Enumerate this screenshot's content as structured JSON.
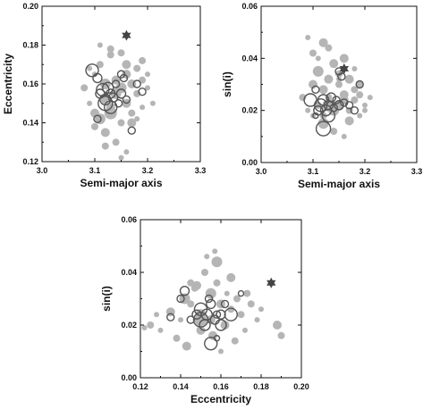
{
  "chart_data": [
    {
      "type": "scatter",
      "xlabel": "Semi-major axis",
      "ylabel": "Eccentricity",
      "xlim": [
        3.0,
        3.3
      ],
      "ylim": [
        0.12,
        0.2
      ],
      "xticks": [
        "3.0",
        "3.1",
        "3.2",
        "3.3"
      ],
      "yticks": [
        "0.12",
        "0.14",
        "0.16",
        "0.18",
        "0.20"
      ],
      "series": [
        {
          "marker": "filled-gray-circle",
          "x": [
            3.08,
            3.09,
            3.1,
            3.1,
            3.11,
            3.11,
            3.12,
            3.12,
            3.13,
            3.13,
            3.14,
            3.14,
            3.15,
            3.15,
            3.16,
            3.16,
            3.17,
            3.17,
            3.18,
            3.18,
            3.19,
            3.19,
            3.2,
            3.21,
            3.1,
            3.12,
            3.14,
            3.16,
            3.18,
            3.11,
            3.13,
            3.15,
            3.17,
            3.19,
            3.09,
            3.15,
            3.13,
            3.16,
            3.2,
            3.12
          ],
          "y": [
            0.158,
            0.15,
            0.145,
            0.165,
            0.142,
            0.17,
            0.152,
            0.16,
            0.148,
            0.175,
            0.155,
            0.162,
            0.14,
            0.158,
            0.165,
            0.15,
            0.145,
            0.16,
            0.155,
            0.168,
            0.148,
            0.172,
            0.158,
            0.15,
            0.138,
            0.135,
            0.13,
            0.125,
            0.142,
            0.18,
            0.178,
            0.176,
            0.14,
            0.162,
            0.168,
            0.122,
            0.145,
            0.17,
            0.165,
            0.128
          ],
          "size": [
            4,
            3,
            5,
            3,
            6,
            4,
            5,
            6,
            5,
            4,
            6,
            5,
            4,
            6,
            5,
            5,
            4,
            5,
            4,
            4,
            3,
            4,
            3,
            3,
            4,
            5,
            4,
            3,
            3,
            3,
            4,
            4,
            5,
            4,
            3,
            3,
            7,
            5,
            3,
            4
          ]
        },
        {
          "marker": "open-circle",
          "x": [
            3.095,
            3.105,
            3.11,
            3.115,
            3.12,
            3.12,
            3.125,
            3.13,
            3.13,
            3.135,
            3.14,
            3.145,
            3.15,
            3.155,
            3.16,
            3.17,
            3.18,
            3.19,
            3.105,
            3.15
          ],
          "y": [
            0.167,
            0.142,
            0.155,
            0.157,
            0.152,
            0.15,
            0.158,
            0.155,
            0.148,
            0.153,
            0.16,
            0.15,
            0.155,
            0.163,
            0.152,
            0.136,
            0.16,
            0.156,
            0.163,
            0.165
          ],
          "size": [
            7,
            4,
            5,
            7,
            6,
            8,
            6,
            5,
            7,
            5,
            4,
            4,
            5,
            4,
            4,
            4,
            4,
            4,
            5,
            4
          ]
        },
        {
          "marker": "dark-star",
          "x": [
            3.16
          ],
          "y": [
            0.185
          ]
        }
      ]
    },
    {
      "type": "scatter",
      "xlabel": "Semi-major axis",
      "ylabel": "sin(i)",
      "xlim": [
        3.0,
        3.3
      ],
      "ylim": [
        0.0,
        0.06
      ],
      "xticks": [
        "3.0",
        "3.1",
        "3.2",
        "3.3"
      ],
      "yticks": [
        "0.00",
        "0.02",
        "0.04",
        "0.06"
      ],
      "series": [
        {
          "marker": "filled-gray-circle",
          "x": [
            3.08,
            3.09,
            3.1,
            3.1,
            3.11,
            3.11,
            3.12,
            3.12,
            3.13,
            3.13,
            3.14,
            3.14,
            3.15,
            3.15,
            3.16,
            3.16,
            3.17,
            3.17,
            3.18,
            3.18,
            3.19,
            3.19,
            3.2,
            3.21,
            3.1,
            3.12,
            3.14,
            3.16,
            3.18,
            3.11,
            3.13,
            3.15,
            3.17,
            3.19,
            3.09,
            3.15,
            3.13,
            3.16,
            3.2,
            3.12
          ],
          "y": [
            0.025,
            0.02,
            0.03,
            0.018,
            0.035,
            0.022,
            0.028,
            0.015,
            0.032,
            0.025,
            0.02,
            0.038,
            0.03,
            0.022,
            0.026,
            0.04,
            0.02,
            0.032,
            0.024,
            0.028,
            0.018,
            0.03,
            0.022,
            0.025,
            0.042,
            0.046,
            0.012,
            0.01,
            0.036,
            0.04,
            0.044,
            0.034,
            0.016,
            0.026,
            0.048,
            0.032,
            0.022,
            0.024,
            0.02,
            0.018
          ],
          "size": [
            4,
            3,
            5,
            3,
            6,
            4,
            5,
            6,
            5,
            4,
            6,
            5,
            4,
            6,
            5,
            5,
            4,
            5,
            4,
            4,
            3,
            4,
            3,
            3,
            4,
            5,
            4,
            3,
            3,
            3,
            4,
            4,
            5,
            4,
            3,
            3,
            7,
            5,
            3,
            4
          ]
        },
        {
          "marker": "open-circle",
          "x": [
            3.095,
            3.105,
            3.11,
            3.115,
            3.12,
            3.12,
            3.125,
            3.13,
            3.13,
            3.135,
            3.14,
            3.145,
            3.15,
            3.155,
            3.16,
            3.17,
            3.18,
            3.19,
            3.105,
            3.15
          ],
          "y": [
            0.024,
            0.028,
            0.02,
            0.022,
            0.013,
            0.024,
            0.02,
            0.022,
            0.018,
            0.025,
            0.021,
            0.024,
            0.022,
            0.033,
            0.023,
            0.022,
            0.02,
            0.03,
            0.018,
            0.035
          ],
          "size": [
            7,
            4,
            5,
            7,
            8,
            6,
            6,
            5,
            7,
            5,
            4,
            4,
            5,
            4,
            4,
            4,
            4,
            4,
            3,
            4
          ]
        },
        {
          "marker": "dark-star",
          "x": [
            3.16
          ],
          "y": [
            0.036
          ]
        }
      ]
    },
    {
      "type": "scatter",
      "xlabel": "Eccentricity",
      "ylabel": "sin(i)",
      "xlim": [
        0.12,
        0.2
      ],
      "ylim": [
        0.0,
        0.06
      ],
      "xticks": [
        "0.12",
        "0.14",
        "0.16",
        "0.18",
        "0.20"
      ],
      "yticks": [
        "0.00",
        "0.02",
        "0.04",
        "0.06"
      ],
      "series": [
        {
          "marker": "filled-gray-circle",
          "x": [
            0.125,
            0.13,
            0.135,
            0.14,
            0.142,
            0.145,
            0.148,
            0.15,
            0.15,
            0.152,
            0.155,
            0.155,
            0.158,
            0.158,
            0.16,
            0.162,
            0.165,
            0.165,
            0.168,
            0.17,
            0.172,
            0.175,
            0.178,
            0.18,
            0.138,
            0.143,
            0.147,
            0.153,
            0.157,
            0.163,
            0.167,
            0.173,
            0.188,
            0.19,
            0.128,
            0.122,
            0.15,
            0.156,
            0.16,
            0.145
          ],
          "y": [
            0.02,
            0.018,
            0.025,
            0.022,
            0.03,
            0.028,
            0.035,
            0.024,
            0.018,
            0.04,
            0.032,
            0.022,
            0.036,
            0.044,
            0.028,
            0.02,
            0.026,
            0.038,
            0.03,
            0.024,
            0.018,
            0.028,
            0.022,
            0.026,
            0.015,
            0.012,
            0.034,
            0.046,
            0.048,
            0.032,
            0.014,
            0.032,
            0.02,
            0.016,
            0.024,
            0.019,
            0.022,
            0.016,
            0.01,
            0.036
          ],
          "size": [
            4,
            3,
            5,
            3,
            6,
            4,
            5,
            6,
            5,
            4,
            6,
            5,
            4,
            6,
            5,
            5,
            4,
            5,
            4,
            4,
            3,
            4,
            3,
            3,
            4,
            5,
            4,
            3,
            3,
            3,
            4,
            4,
            5,
            4,
            3,
            3,
            7,
            5,
            3,
            4
          ]
        },
        {
          "marker": "open-circle",
          "x": [
            0.142,
            0.145,
            0.148,
            0.15,
            0.15,
            0.152,
            0.153,
            0.155,
            0.155,
            0.157,
            0.158,
            0.16,
            0.16,
            0.162,
            0.165,
            0.17,
            0.14,
            0.135,
            0.154,
            0.158
          ],
          "y": [
            0.033,
            0.022,
            0.024,
            0.026,
            0.022,
            0.02,
            0.024,
            0.028,
            0.013,
            0.022,
            0.024,
            0.02,
            0.024,
            0.028,
            0.024,
            0.032,
            0.03,
            0.023,
            0.03,
            0.015
          ],
          "size": [
            5,
            4,
            5,
            7,
            8,
            6,
            6,
            5,
            7,
            5,
            4,
            6,
            5,
            4,
            7,
            3,
            4,
            4,
            4,
            3
          ]
        },
        {
          "marker": "dark-star",
          "x": [
            0.185
          ],
          "y": [
            0.036
          ]
        }
      ]
    }
  ]
}
